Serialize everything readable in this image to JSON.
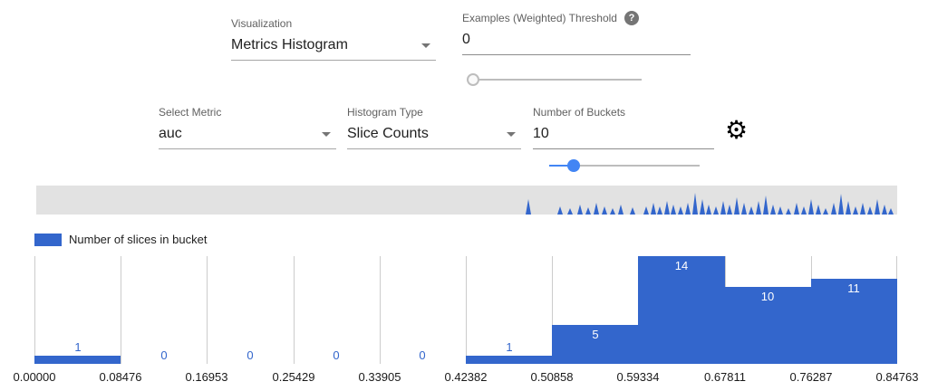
{
  "colors": {
    "accent": "#4285f4",
    "bar": "#3366cc"
  },
  "icons": {
    "help_glyph": "?",
    "gear_glyph": "⚙"
  },
  "controls": {
    "visualization": {
      "label": "Visualization",
      "value": "Metrics Histogram"
    },
    "threshold": {
      "label": "Examples (Weighted) Threshold",
      "value": "0"
    },
    "select_metric": {
      "label": "Select Metric",
      "value": "auc"
    },
    "histogram_type": {
      "label": "Histogram Type",
      "value": "Slice Counts"
    },
    "num_buckets": {
      "label": "Number of Buckets",
      "value": "10"
    }
  },
  "sliders": {
    "threshold_slider": {
      "fraction": 0.0
    },
    "buckets_slider": {
      "fraction": 0.16
    }
  },
  "legend": {
    "label": "Number of slices in bucket"
  },
  "chart_data": {
    "type": "bar",
    "title": "",
    "series_name": "Number of slices in bucket",
    "x_tick_labels": [
      "0.00000",
      "0.08476",
      "0.16953",
      "0.25429",
      "0.33905",
      "0.42382",
      "0.50858",
      "0.59334",
      "0.67811",
      "0.76287",
      "0.84763"
    ],
    "values": [
      1,
      0,
      0,
      0,
      0,
      1,
      5,
      14,
      10,
      11
    ],
    "ylim": [
      0,
      14
    ],
    "grid": "vertical",
    "legend_position": "top-left",
    "bar_color": "#3366cc"
  },
  "minimap_spikes": [
    [
      543,
      17
    ],
    [
      578,
      9
    ],
    [
      589,
      7
    ],
    [
      600,
      11
    ],
    [
      609,
      8
    ],
    [
      618,
      13
    ],
    [
      627,
      9
    ],
    [
      636,
      7
    ],
    [
      645,
      11
    ],
    [
      658,
      8
    ],
    [
      673,
      9
    ],
    [
      681,
      13
    ],
    [
      688,
      9
    ],
    [
      696,
      15
    ],
    [
      703,
      11
    ],
    [
      711,
      9
    ],
    [
      719,
      13
    ],
    [
      727,
      24
    ],
    [
      735,
      17
    ],
    [
      742,
      11
    ],
    [
      750,
      9
    ],
    [
      758,
      15
    ],
    [
      765,
      11
    ],
    [
      773,
      19
    ],
    [
      781,
      13
    ],
    [
      789,
      9
    ],
    [
      797,
      15
    ],
    [
      805,
      21
    ],
    [
      813,
      11
    ],
    [
      821,
      9
    ],
    [
      830,
      7
    ],
    [
      839,
      13
    ],
    [
      847,
      9
    ],
    [
      855,
      17
    ],
    [
      863,
      11
    ],
    [
      871,
      7
    ],
    [
      880,
      13
    ],
    [
      888,
      23
    ],
    [
      896,
      15
    ],
    [
      904,
      9
    ],
    [
      912,
      13
    ],
    [
      920,
      9
    ],
    [
      928,
      17
    ],
    [
      936,
      11
    ],
    [
      943,
      7
    ]
  ]
}
